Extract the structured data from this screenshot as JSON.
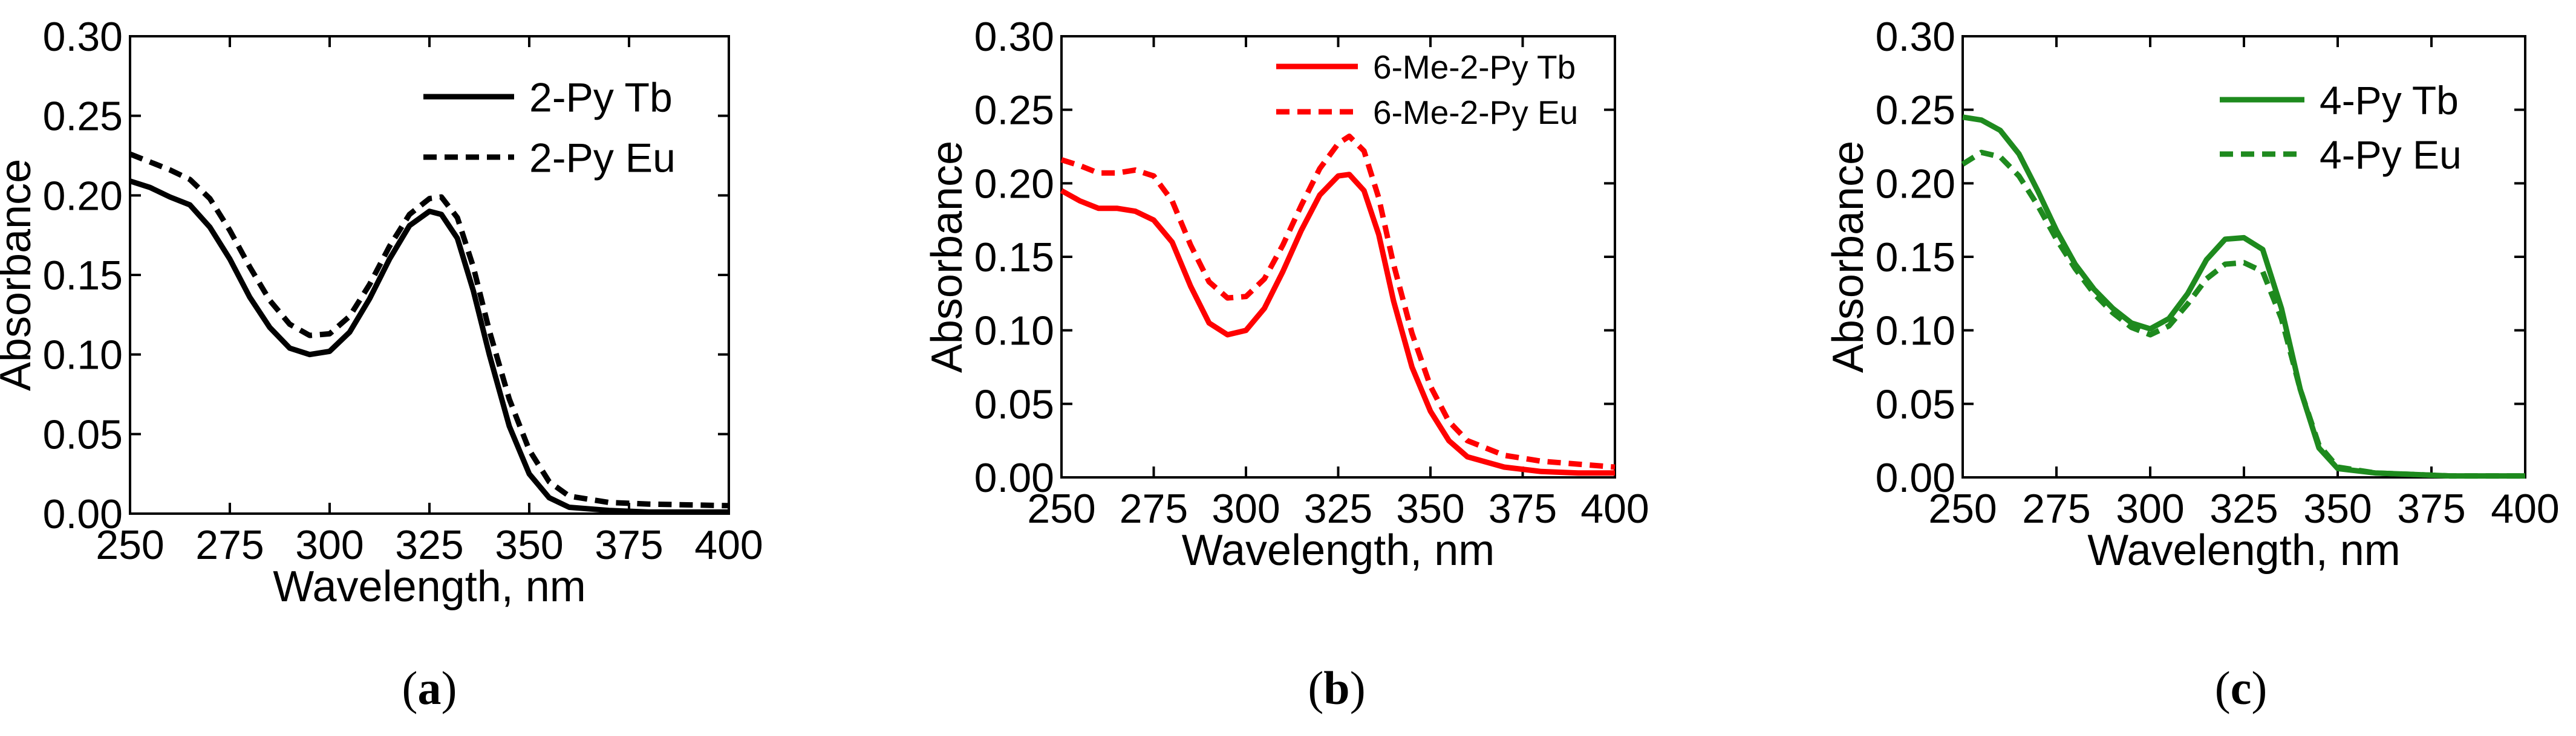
{
  "colors": {
    "black": "#000000",
    "red": "#ff0000",
    "green": "#1e8a1e"
  },
  "chart_data": [
    {
      "type": "line",
      "panel_label": "(a)",
      "panel_letter": "a",
      "xlabel": "Wavelength, nm",
      "ylabel": "Absorbance",
      "xlim": [
        250,
        400
      ],
      "ylim": [
        0,
        0.3
      ],
      "x_ticks": [
        "250",
        "275",
        "300",
        "325",
        "350",
        "375",
        "400"
      ],
      "y_ticks": [
        "0.00",
        "0.05",
        "0.10",
        "0.15",
        "0.20",
        "0.25",
        "0.30"
      ],
      "grid": false,
      "legend_position": "top-right",
      "series": [
        {
          "name": "2-Py Tb",
          "color": "#000000",
          "dash": "solid",
          "points": [
            [
              250,
              0.209
            ],
            [
              255,
              0.205
            ],
            [
              260,
              0.199
            ],
            [
              265,
              0.194
            ],
            [
              270,
              0.18
            ],
            [
              275,
              0.16
            ],
            [
              280,
              0.136
            ],
            [
              285,
              0.117
            ],
            [
              290,
              0.104
            ],
            [
              295,
              0.1
            ],
            [
              300,
              0.102
            ],
            [
              305,
              0.114
            ],
            [
              310,
              0.135
            ],
            [
              315,
              0.16
            ],
            [
              320,
              0.181
            ],
            [
              325,
              0.19
            ],
            [
              328,
              0.188
            ],
            [
              332,
              0.173
            ],
            [
              336,
              0.14
            ],
            [
              340,
              0.1
            ],
            [
              345,
              0.055
            ],
            [
              350,
              0.025
            ],
            [
              355,
              0.01
            ],
            [
              360,
              0.004
            ],
            [
              370,
              0.002
            ],
            [
              380,
              0.001
            ],
            [
              400,
              0.001
            ]
          ]
        },
        {
          "name": "2-Py Eu",
          "color": "#000000",
          "dash": "dashed",
          "points": [
            [
              250,
              0.226
            ],
            [
              255,
              0.221
            ],
            [
              260,
              0.216
            ],
            [
              265,
              0.21
            ],
            [
              270,
              0.198
            ],
            [
              275,
              0.178
            ],
            [
              280,
              0.155
            ],
            [
              285,
              0.134
            ],
            [
              290,
              0.119
            ],
            [
              295,
              0.112
            ],
            [
              300,
              0.113
            ],
            [
              305,
              0.124
            ],
            [
              310,
              0.144
            ],
            [
              315,
              0.168
            ],
            [
              320,
              0.188
            ],
            [
              325,
              0.198
            ],
            [
              328,
              0.199
            ],
            [
              332,
              0.186
            ],
            [
              336,
              0.155
            ],
            [
              340,
              0.115
            ],
            [
              345,
              0.072
            ],
            [
              350,
              0.04
            ],
            [
              355,
              0.02
            ],
            [
              360,
              0.011
            ],
            [
              370,
              0.007
            ],
            [
              380,
              0.006
            ],
            [
              400,
              0.005
            ]
          ]
        }
      ]
    },
    {
      "type": "line",
      "panel_label": "(b)",
      "panel_letter": "b",
      "xlabel": "Wavelength, nm",
      "ylabel": "Absorbance",
      "xlim": [
        250,
        400
      ],
      "ylim": [
        0,
        0.3
      ],
      "x_ticks": [
        "250",
        "275",
        "300",
        "325",
        "350",
        "375",
        "400"
      ],
      "y_ticks": [
        "0.00",
        "0.05",
        "0.10",
        "0.15",
        "0.20",
        "0.25",
        "0.30"
      ],
      "grid": false,
      "legend_position": "top-right",
      "series": [
        {
          "name": "6-Me-2-Py Tb",
          "color": "#ff0000",
          "dash": "solid",
          "points": [
            [
              250,
              0.195
            ],
            [
              255,
              0.188
            ],
            [
              260,
              0.183
            ],
            [
              265,
              0.183
            ],
            [
              270,
              0.181
            ],
            [
              275,
              0.175
            ],
            [
              280,
              0.16
            ],
            [
              285,
              0.13
            ],
            [
              290,
              0.105
            ],
            [
              295,
              0.097
            ],
            [
              300,
              0.1
            ],
            [
              305,
              0.115
            ],
            [
              310,
              0.14
            ],
            [
              315,
              0.168
            ],
            [
              320,
              0.192
            ],
            [
              325,
              0.205
            ],
            [
              328,
              0.206
            ],
            [
              332,
              0.195
            ],
            [
              336,
              0.165
            ],
            [
              340,
              0.12
            ],
            [
              345,
              0.075
            ],
            [
              350,
              0.045
            ],
            [
              355,
              0.025
            ],
            [
              360,
              0.014
            ],
            [
              370,
              0.007
            ],
            [
              380,
              0.004
            ],
            [
              390,
              0.003
            ],
            [
              400,
              0.003
            ]
          ]
        },
        {
          "name": "6-Me-2-Py Eu",
          "color": "#ff0000",
          "dash": "dashed",
          "points": [
            [
              250,
              0.216
            ],
            [
              255,
              0.212
            ],
            [
              260,
              0.207
            ],
            [
              265,
              0.207
            ],
            [
              270,
              0.209
            ],
            [
              275,
              0.205
            ],
            [
              280,
              0.188
            ],
            [
              285,
              0.158
            ],
            [
              290,
              0.133
            ],
            [
              295,
              0.122
            ],
            [
              300,
              0.123
            ],
            [
              305,
              0.135
            ],
            [
              310,
              0.158
            ],
            [
              315,
              0.185
            ],
            [
              320,
              0.21
            ],
            [
              325,
              0.227
            ],
            [
              328,
              0.232
            ],
            [
              332,
              0.222
            ],
            [
              336,
              0.19
            ],
            [
              340,
              0.145
            ],
            [
              345,
              0.098
            ],
            [
              350,
              0.062
            ],
            [
              355,
              0.038
            ],
            [
              360,
              0.025
            ],
            [
              370,
              0.015
            ],
            [
              380,
              0.011
            ],
            [
              390,
              0.009
            ],
            [
              400,
              0.007
            ]
          ]
        }
      ]
    },
    {
      "type": "line",
      "panel_label": "(c)",
      "panel_letter": "c",
      "xlabel": "Wavelength, nm",
      "ylabel": "Absorbance",
      "xlim": [
        250,
        400
      ],
      "ylim": [
        0,
        0.3
      ],
      "x_ticks": [
        "250",
        "275",
        "300",
        "325",
        "350",
        "375",
        "400"
      ],
      "y_ticks": [
        "0.00",
        "0.05",
        "0.10",
        "0.15",
        "0.20",
        "0.25",
        "0.30"
      ],
      "grid": false,
      "legend_position": "top-right",
      "series": [
        {
          "name": "4-Py Tb",
          "color": "#1e8a1e",
          "dash": "solid",
          "points": [
            [
              250,
              0.245
            ],
            [
              255,
              0.243
            ],
            [
              260,
              0.236
            ],
            [
              265,
              0.22
            ],
            [
              270,
              0.195
            ],
            [
              275,
              0.168
            ],
            [
              280,
              0.145
            ],
            [
              285,
              0.128
            ],
            [
              290,
              0.115
            ],
            [
              295,
              0.105
            ],
            [
              300,
              0.101
            ],
            [
              305,
              0.108
            ],
            [
              310,
              0.125
            ],
            [
              315,
              0.148
            ],
            [
              320,
              0.162
            ],
            [
              325,
              0.163
            ],
            [
              330,
              0.155
            ],
            [
              335,
              0.115
            ],
            [
              340,
              0.06
            ],
            [
              345,
              0.02
            ],
            [
              350,
              0.006
            ],
            [
              360,
              0.003
            ],
            [
              370,
              0.002
            ],
            [
              380,
              0.001
            ],
            [
              390,
              0.001
            ],
            [
              400,
              0.001
            ]
          ]
        },
        {
          "name": "4-Py Eu",
          "color": "#1e8a1e",
          "dash": "dashed",
          "points": [
            [
              250,
              0.213
            ],
            [
              255,
              0.221
            ],
            [
              260,
              0.218
            ],
            [
              265,
              0.205
            ],
            [
              270,
              0.185
            ],
            [
              275,
              0.162
            ],
            [
              280,
              0.142
            ],
            [
              285,
              0.125
            ],
            [
              290,
              0.112
            ],
            [
              295,
              0.102
            ],
            [
              300,
              0.097
            ],
            [
              305,
              0.103
            ],
            [
              310,
              0.118
            ],
            [
              315,
              0.135
            ],
            [
              320,
              0.145
            ],
            [
              325,
              0.146
            ],
            [
              330,
              0.14
            ],
            [
              335,
              0.108
            ],
            [
              340,
              0.06
            ],
            [
              345,
              0.022
            ],
            [
              350,
              0.007
            ],
            [
              360,
              0.003
            ],
            [
              370,
              0.002
            ],
            [
              380,
              0.001
            ],
            [
              390,
              0.001
            ],
            [
              400,
              0.001
            ]
          ]
        }
      ]
    }
  ]
}
